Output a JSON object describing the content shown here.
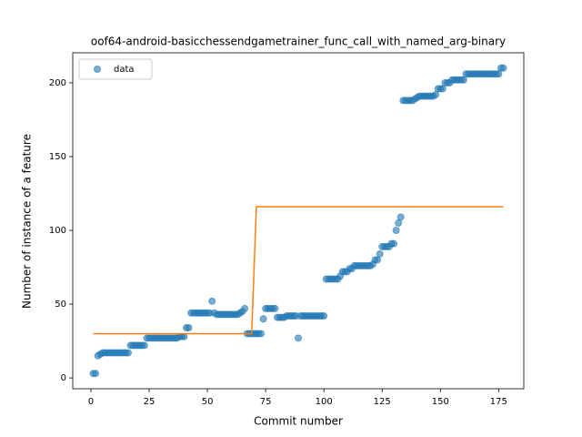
{
  "chart_data": {
    "type": "scatter",
    "title": "oof64-android-basicchessendgametrainer_func_call_with_named_arg-binary",
    "x_label": "Commit number",
    "y_label": "Number of instance of a feature",
    "xlim": [
      -7.8,
      185.8
    ],
    "ylim": [
      -7.35,
      220.35
    ],
    "xticks": [
      0,
      25,
      50,
      75,
      100,
      125,
      150,
      175
    ],
    "yticks": [
      0,
      50,
      100,
      150,
      200
    ],
    "legend": "upper left",
    "series": [
      {
        "name": "data",
        "color": "#1f77b4",
        "mode": "markers",
        "x": [
          1,
          2,
          3,
          4,
          5,
          6,
          7,
          8,
          9,
          10,
          11,
          12,
          13,
          14,
          15,
          16,
          17,
          18,
          19,
          20,
          21,
          22,
          23,
          24,
          25,
          26,
          27,
          28,
          29,
          30,
          31,
          32,
          33,
          34,
          35,
          36,
          37,
          38,
          39,
          40,
          41,
          42,
          43,
          44,
          45,
          46,
          47,
          48,
          49,
          50,
          51,
          52,
          53,
          54,
          55,
          56,
          57,
          58,
          59,
          60,
          61,
          62,
          63,
          64,
          65,
          66,
          67,
          68,
          69,
          70,
          71,
          72,
          73,
          74,
          75,
          76,
          77,
          78,
          79,
          80,
          81,
          82,
          83,
          84,
          85,
          86,
          87,
          88,
          89,
          90,
          91,
          92,
          93,
          94,
          95,
          96,
          97,
          98,
          99,
          100,
          101,
          102,
          103,
          104,
          105,
          106,
          107,
          108,
          109,
          110,
          111,
          112,
          113,
          114,
          115,
          116,
          117,
          118,
          119,
          120,
          121,
          122,
          123,
          124,
          125,
          126,
          127,
          128,
          129,
          130,
          131,
          132,
          133,
          134,
          135,
          136,
          137,
          138,
          139,
          140,
          141,
          142,
          143,
          144,
          145,
          146,
          147,
          148,
          149,
          150,
          151,
          152,
          153,
          154,
          155,
          156,
          157,
          158,
          159,
          160,
          161,
          162,
          163,
          164,
          165,
          166,
          167,
          168,
          169,
          170,
          171,
          172,
          173,
          174,
          175,
          176,
          177
        ],
        "values": [
          3,
          3,
          15,
          16,
          17,
          17,
          17,
          17,
          17,
          17,
          17,
          17,
          17,
          17,
          17,
          17,
          22,
          22,
          22,
          22,
          22,
          22,
          22,
          27,
          27,
          27,
          27,
          27,
          27,
          27,
          27,
          27,
          27,
          27,
          27,
          27,
          27,
          28,
          28,
          28,
          34,
          34,
          44,
          44,
          44,
          44,
          44,
          44,
          44,
          44,
          44,
          52,
          44,
          43,
          43,
          43,
          43,
          43,
          43,
          43,
          43,
          43,
          43,
          44,
          45,
          47,
          30,
          30,
          30,
          30,
          30,
          30,
          30,
          40,
          47,
          47,
          47,
          47,
          47,
          41,
          41,
          41,
          41,
          42,
          42,
          42,
          42,
          42,
          27,
          42,
          42,
          42,
          42,
          42,
          42,
          42,
          42,
          42,
          42,
          42,
          67,
          67,
          67,
          67,
          67,
          67,
          69,
          72,
          72,
          72,
          74,
          74,
          76,
          76,
          76,
          76,
          76,
          76,
          76,
          76,
          77,
          80,
          80,
          84,
          89,
          89,
          89,
          89,
          91,
          91,
          100,
          105,
          109,
          188,
          188,
          188,
          188,
          188,
          189,
          190,
          191,
          191,
          191,
          191,
          191,
          191,
          191,
          192,
          196,
          196,
          196,
          200,
          200,
          200,
          202,
          202,
          202,
          202,
          202,
          202,
          206,
          206,
          206,
          206,
          206,
          206,
          206,
          206,
          206,
          206,
          206,
          206,
          206,
          206,
          206,
          210,
          210
        ]
      },
      {
        "color": "#ff7f0e",
        "mode": "line",
        "x": [
          1,
          69,
          71,
          177
        ],
        "values": [
          30,
          30,
          116,
          116
        ]
      }
    ]
  }
}
